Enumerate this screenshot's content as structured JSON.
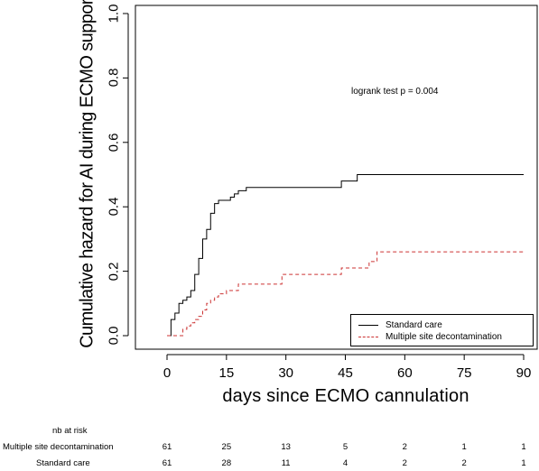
{
  "chart_data": {
    "type": "line",
    "xlabel": "days since ECMO cannulation",
    "ylabel": "Cumulative hazard for AI during ECMO support",
    "xlim": [
      0,
      90
    ],
    "ylim": [
      0,
      1.0
    ],
    "x_ticks": [
      "0",
      "15",
      "30",
      "45",
      "60",
      "75",
      "90"
    ],
    "y_ticks": [
      "0.0",
      "0.2",
      "0.4",
      "0.6",
      "0.8",
      "1.0"
    ],
    "annotation": "logrank test p = 0.004",
    "legend_position": "bottom-right",
    "series": [
      {
        "name": "Standard care",
        "color": "#000000",
        "style": "solid",
        "x": [
          0,
          1,
          2,
          3,
          4,
          5,
          6,
          7,
          8,
          9,
          10,
          11,
          12,
          13,
          15,
          16,
          17,
          18,
          20,
          44,
          48,
          90
        ],
        "y": [
          0,
          0.05,
          0.07,
          0.1,
          0.11,
          0.12,
          0.14,
          0.19,
          0.24,
          0.3,
          0.33,
          0.38,
          0.41,
          0.42,
          0.42,
          0.43,
          0.44,
          0.45,
          0.46,
          0.48,
          0.5,
          0.5
        ]
      },
      {
        "name": "Multiple site decontamination",
        "color": "#cc3333",
        "style": "dashed",
        "x": [
          0,
          4,
          5,
          6,
          7,
          8,
          9,
          10,
          11,
          12,
          13,
          15,
          18,
          29,
          44,
          51,
          53,
          90
        ],
        "y": [
          0,
          0.02,
          0.03,
          0.04,
          0.05,
          0.06,
          0.08,
          0.1,
          0.11,
          0.12,
          0.13,
          0.14,
          0.16,
          0.19,
          0.21,
          0.23,
          0.26,
          0.26
        ]
      }
    ]
  },
  "risk_table": {
    "title": "nb at risk",
    "times": [
      0,
      15,
      30,
      45,
      60,
      75,
      90
    ],
    "rows": [
      {
        "label": "Multiple site decontamination",
        "values": [
          61,
          25,
          13,
          5,
          2,
          1,
          1
        ]
      },
      {
        "label": "Standard care",
        "values": [
          61,
          28,
          11,
          4,
          2,
          2,
          1
        ]
      }
    ]
  }
}
